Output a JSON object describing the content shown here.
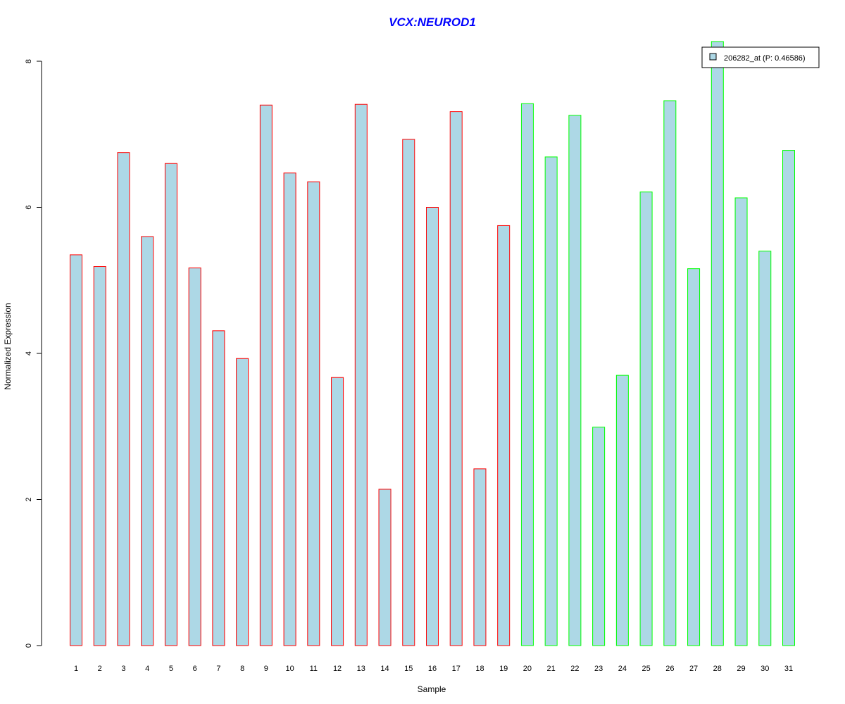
{
  "chart_data": {
    "type": "bar",
    "title": "VCX:NEUROD1",
    "xlabel": "Sample",
    "ylabel": "Normalized Expression",
    "ylim": [
      0,
      8
    ],
    "yticks": [
      "0",
      "2",
      "4",
      "6",
      "8"
    ],
    "categories": [
      "1",
      "2",
      "3",
      "4",
      "5",
      "6",
      "7",
      "8",
      "9",
      "10",
      "11",
      "12",
      "13",
      "14",
      "15",
      "16",
      "17",
      "18",
      "19",
      "20",
      "21",
      "22",
      "23",
      "24",
      "25",
      "26",
      "27",
      "28",
      "29",
      "30",
      "31"
    ],
    "series": [
      {
        "name": "206282_at (P: 0.46586)",
        "values": [
          5.35,
          5.19,
          6.75,
          5.6,
          6.6,
          5.17,
          4.31,
          3.93,
          7.4,
          6.47,
          6.35,
          3.67,
          7.41,
          2.14,
          6.93,
          6.0,
          7.31,
          2.42,
          5.75,
          7.42,
          6.69,
          7.26,
          2.99,
          3.7,
          6.21,
          7.46,
          5.16,
          8.27,
          6.13,
          5.4,
          6.78
        ],
        "groups": [
          "a",
          "a",
          "a",
          "a",
          "a",
          "a",
          "a",
          "a",
          "a",
          "a",
          "a",
          "a",
          "a",
          "a",
          "a",
          "a",
          "a",
          "a",
          "a",
          "b",
          "b",
          "b",
          "b",
          "b",
          "b",
          "b",
          "b",
          "b",
          "b",
          "b",
          "b"
        ]
      }
    ],
    "legend": {
      "label": "206282_at (P: 0.46586)",
      "placement": "top-right"
    },
    "colors": {
      "fill": "#add8e6",
      "group_a_border": "#ff0000",
      "group_b_border": "#00ff00",
      "title": "#0000ff"
    },
    "grid": false
  }
}
